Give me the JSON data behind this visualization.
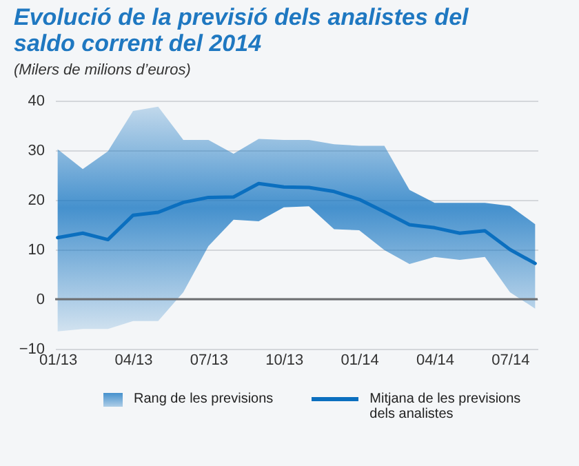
{
  "chart_data": {
    "type": "line",
    "title": "Evolució de la previsió dels analistes del saldo corrent del 2014",
    "subtitle": "(Milers de milions d’euros)",
    "categories": [
      "01/13",
      null,
      null,
      "04/13",
      null,
      null,
      "07/13",
      null,
      null,
      "10/13",
      null,
      null,
      "01/14",
      null,
      null,
      "04/14",
      null,
      null,
      "07/14",
      null
    ],
    "series": [
      {
        "name": "Mitjana de les previsions dels analistes",
        "color": "#0b6fbf",
        "values": [
          12.4,
          13.3,
          12.0,
          16.9,
          17.5,
          19.5,
          20.5,
          20.6,
          23.3,
          22.6,
          22.5,
          21.7,
          20.1,
          17.6,
          15.0,
          14.4,
          13.3,
          13.8,
          10.0,
          7.2
        ],
        "lower": [
          -6.5,
          -6.0,
          -6.0,
          -4.4,
          -4.4,
          1.4,
          10.7,
          16.0,
          15.7,
          18.5,
          18.7,
          14.1,
          13.9,
          9.9,
          7.1,
          8.5,
          7.9,
          8.5,
          1.4,
          -1.9
        ],
        "upper": [
          30.2,
          26.2,
          29.8,
          37.9,
          38.8,
          32.1,
          32.1,
          29.3,
          32.3,
          32.1,
          32.1,
          31.2,
          30.9,
          30.9,
          22.0,
          19.4,
          19.4,
          19.4,
          18.8,
          15.1
        ]
      }
    ],
    "annotations": [
      "Rang de les previsions"
    ],
    "ylim": [
      -10,
      40
    ],
    "yticks": [
      -10,
      0,
      10,
      20,
      30,
      40
    ],
    "grid": "y",
    "legend": "bottom",
    "ref_lines": [
      {
        "axis": "y",
        "value": 0,
        "color": "#6d6e71"
      }
    ]
  }
}
